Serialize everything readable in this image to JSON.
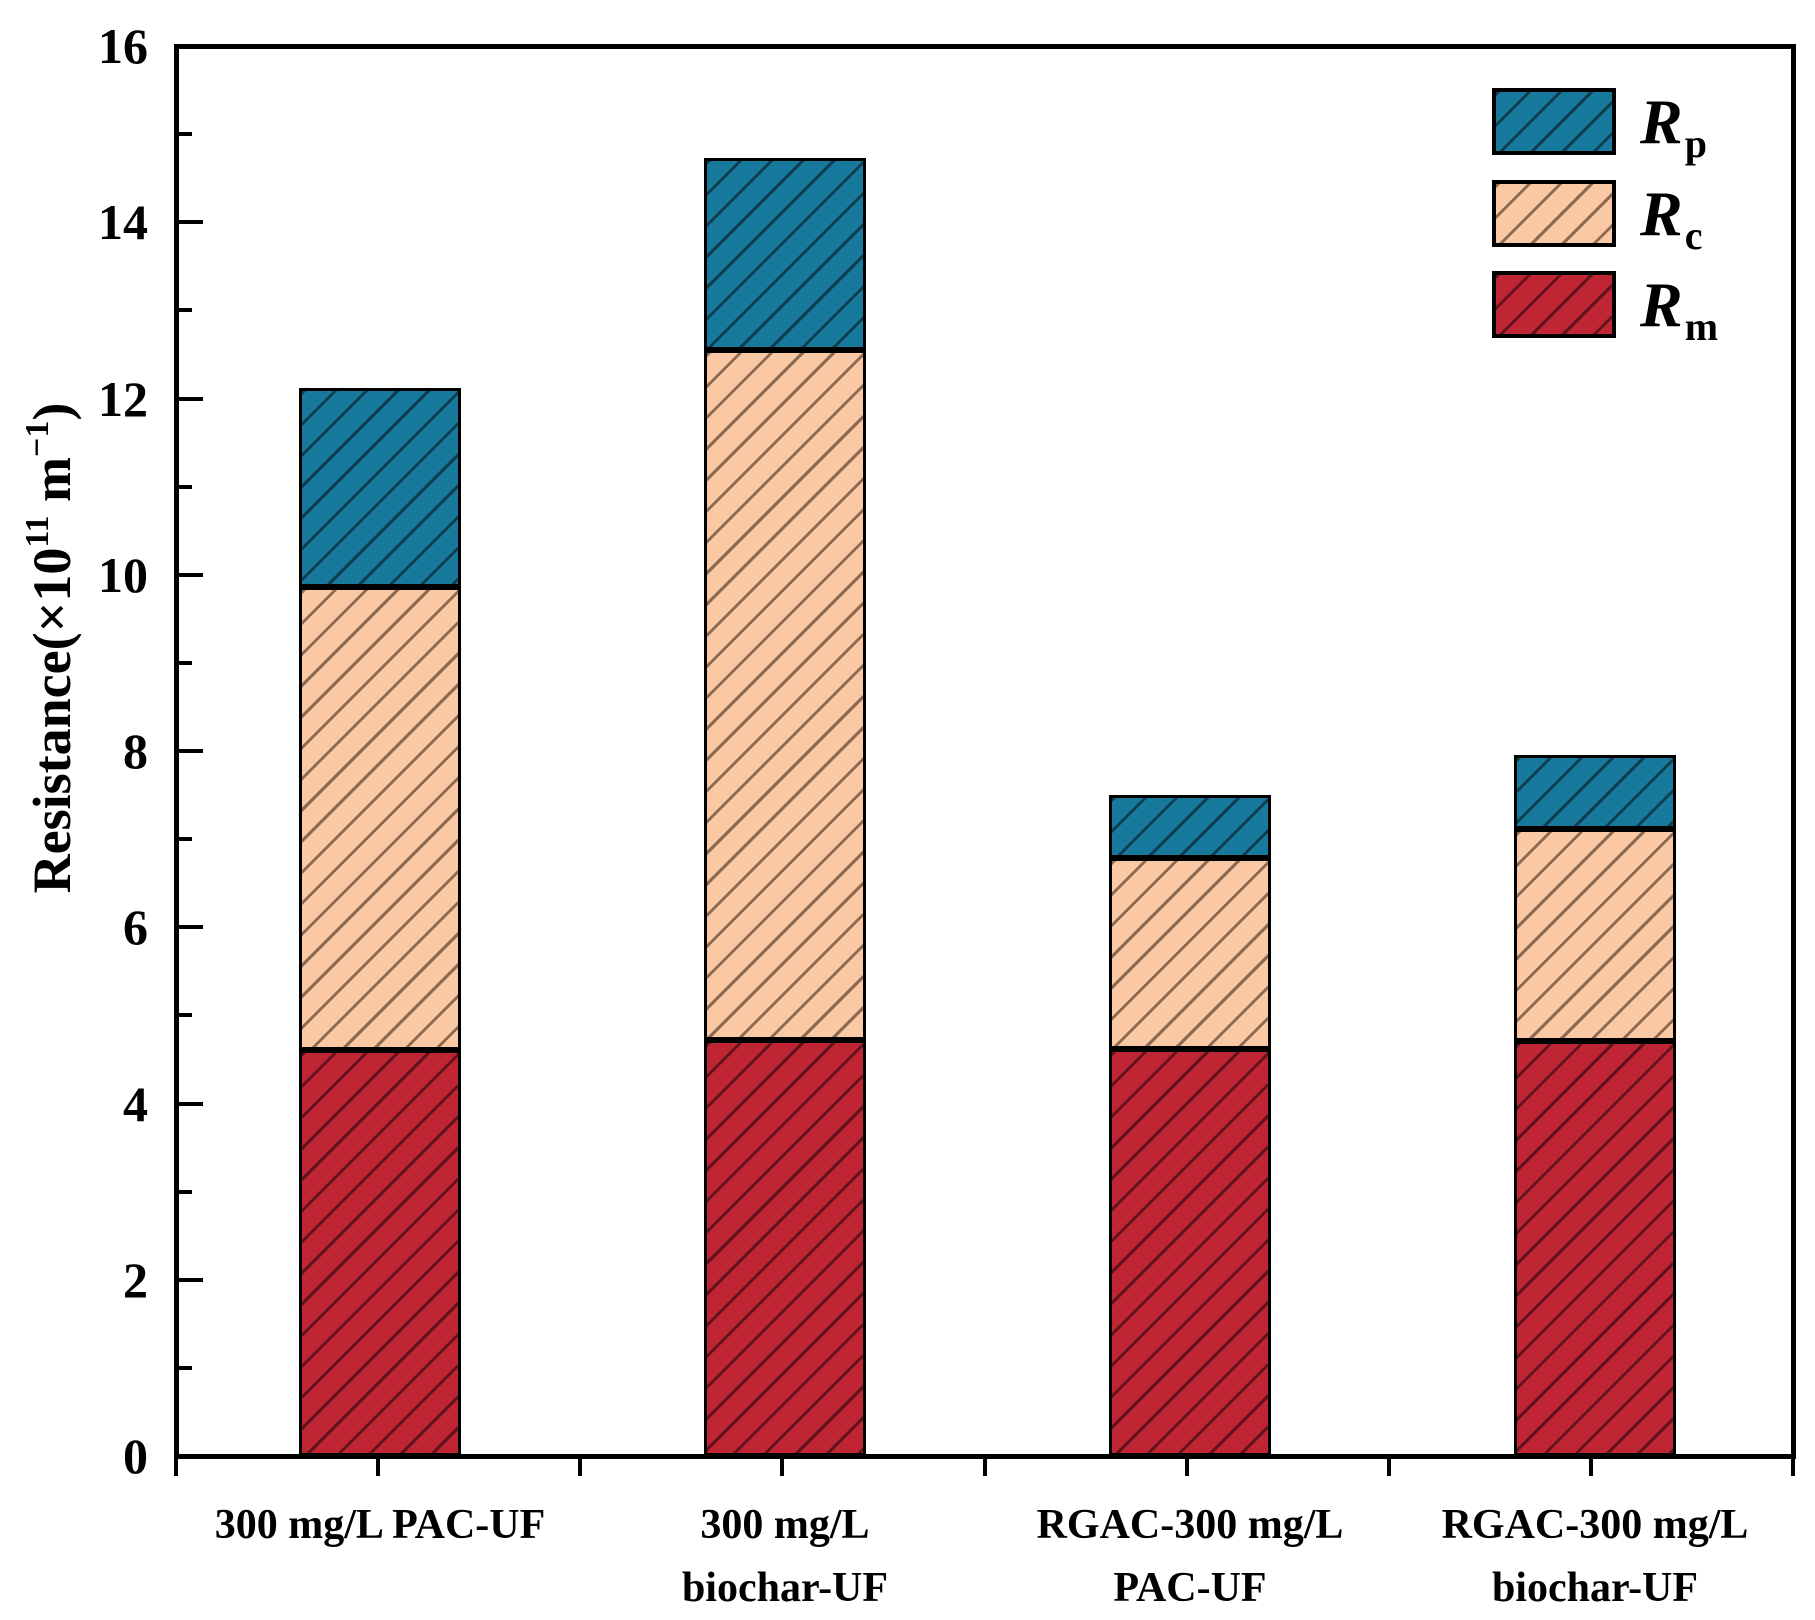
{
  "chart_data": {
    "type": "bar",
    "stacked": true,
    "title": "",
    "xlabel": "",
    "ylabel": "Resistance(×10¹¹ m⁻¹)",
    "ylabel_parts": [
      {
        "text": "Resistance(×10",
        "sup": false
      },
      {
        "text": "11",
        "sup": true
      },
      {
        "text": " m",
        "sup": false
      },
      {
        "text": "−1",
        "sup": true
      },
      {
        "text": ")",
        "sup": false
      }
    ],
    "ylim": [
      0,
      16
    ],
    "ytick_major": [
      0,
      2,
      4,
      6,
      8,
      10,
      12,
      14,
      16
    ],
    "ytick_minor": [
      1,
      3,
      5,
      7,
      9,
      11,
      13,
      15
    ],
    "grid": false,
    "legend_position": "top-right",
    "categories": [
      [
        "300 mg/L PAC-UF"
      ],
      [
        "300 mg/L",
        "biochar-UF"
      ],
      [
        "RGAC-300 mg/L",
        "PAC-UF"
      ],
      [
        "RGAC-300 mg/L",
        "biochar-UF"
      ]
    ],
    "series": [
      {
        "name": "Rm",
        "label_base": "R",
        "label_sub": "m",
        "color": "#c02534",
        "hatch_color": "#64111e",
        "values": [
          4.61,
          4.72,
          4.62,
          4.71
        ]
      },
      {
        "name": "Rc",
        "label_base": "R",
        "label_sub": "c",
        "color": "#fac9a3",
        "hatch_color": "#8d6a52",
        "values": [
          5.25,
          7.83,
          2.17,
          2.41
        ]
      },
      {
        "name": "Rp",
        "label_base": "R",
        "label_sub": "p",
        "color": "#177a9c",
        "hatch_color": "#0d3e50",
        "values": [
          2.26,
          2.18,
          0.71,
          0.84
        ]
      }
    ],
    "stack_totals": [
      12.12,
      14.73,
      7.5,
      7.96
    ],
    "legend_order": [
      "Rp",
      "Rc",
      "Rm"
    ],
    "hatch_pattern": "forward-diagonal"
  },
  "style_hints": {
    "frame_color": "#000000",
    "background": "#ffffff",
    "tick_direction_y": "in",
    "tick_direction_x": "out"
  }
}
